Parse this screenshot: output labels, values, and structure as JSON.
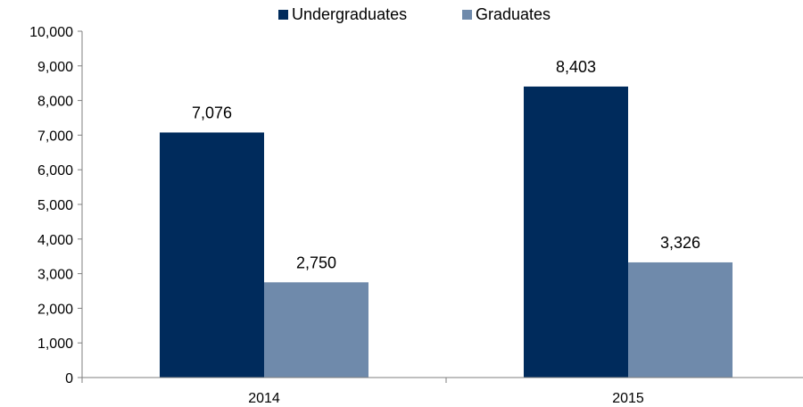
{
  "chart_data": {
    "type": "bar",
    "categories": [
      "2014",
      "2015"
    ],
    "series": [
      {
        "name": "Undergraduates",
        "values": [
          7076,
          8403
        ],
        "labels": [
          "7,076",
          "8,403"
        ],
        "color": "#002b5c"
      },
      {
        "name": "Graduates",
        "values": [
          2750,
          3326
        ],
        "labels": [
          "2,750",
          "3,326"
        ],
        "color": "#6f8aab"
      }
    ],
    "ylim": [
      0,
      10000
    ],
    "yticks": [
      {
        "value": 0,
        "label": "0"
      },
      {
        "value": 1000,
        "label": "1,000"
      },
      {
        "value": 2000,
        "label": "2,000"
      },
      {
        "value": 3000,
        "label": "3,000"
      },
      {
        "value": 4000,
        "label": "4,000"
      },
      {
        "value": 5000,
        "label": "5,000"
      },
      {
        "value": 6000,
        "label": "6,000"
      },
      {
        "value": 7000,
        "label": "7,000"
      },
      {
        "value": 8000,
        "label": "8,000"
      },
      {
        "value": 9000,
        "label": "9,000"
      },
      {
        "value": 10000,
        "label": "10,000"
      }
    ],
    "grid": false,
    "legend_position": "top-center",
    "axis_color": "#7f7f7f"
  }
}
